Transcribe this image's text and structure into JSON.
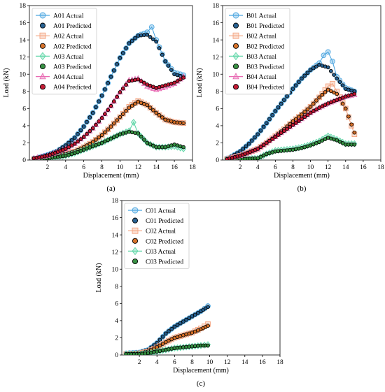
{
  "figure": {
    "colors": {
      "actual_1": "#4da6e0",
      "predicted_1": "#1f5a8c",
      "actual_2": "#f4a582",
      "predicted_2": "#d46a20",
      "actual_3": "#5ed6a7",
      "predicted_3": "#2e8b3a",
      "actual_4": "#e86ab3",
      "predicted_4": "#c0102a"
    }
  },
  "chart_data": [
    {
      "type": "scatter",
      "panel_label": "(a)",
      "xlabel": "Displacement (mm)",
      "ylabel": "Load (kN)",
      "xlim": [
        0,
        18
      ],
      "ylim": [
        0,
        18
      ],
      "xticks": [
        2,
        4,
        6,
        8,
        10,
        12,
        14,
        16,
        18
      ],
      "yticks": [
        0,
        2,
        4,
        6,
        8,
        10,
        12,
        14,
        16,
        18
      ],
      "grid": false,
      "legend_position": "top-left",
      "series": [
        {
          "name": "A01 Actual",
          "kind": "actual",
          "marker": "circle",
          "color_key": "actual_1",
          "x": [
            0.5,
            1,
            2,
            3,
            4,
            5,
            6,
            7,
            8,
            9,
            10,
            11,
            12,
            13,
            13.5,
            14,
            15,
            16,
            17
          ],
          "y": [
            0.2,
            0.3,
            0.6,
            1.0,
            1.7,
            2.6,
            3.9,
            5.5,
            7.5,
            9.7,
            11.9,
            13.6,
            14.5,
            14.9,
            15.5,
            14,
            11.5,
            10.2,
            9.9
          ]
        },
        {
          "name": "A01 Predicted",
          "kind": "predicted",
          "marker": "circle",
          "color_key": "predicted_1",
          "x": [
            0.5,
            1,
            2,
            3,
            4,
            5,
            6,
            7,
            8,
            9,
            10,
            11,
            12,
            13,
            14,
            15,
            16,
            17
          ],
          "y": [
            0.2,
            0.3,
            0.6,
            1.0,
            1.7,
            2.6,
            3.9,
            5.5,
            7.5,
            9.7,
            11.9,
            13.6,
            14.5,
            14.6,
            13.8,
            11.5,
            10,
            9.7
          ]
        },
        {
          "name": "A02 Actual",
          "kind": "actual",
          "marker": "square",
          "color_key": "actual_2",
          "x": [
            0.5,
            2,
            4,
            5,
            6,
            7,
            8,
            9,
            10,
            11,
            12,
            13,
            14,
            15,
            16,
            17
          ],
          "y": [
            0.1,
            0.3,
            0.7,
            1.0,
            1.5,
            2.1,
            2.9,
            3.9,
            5.0,
            6.2,
            6.9,
            6.4,
            5.5,
            4.7,
            4.4,
            4.3
          ]
        },
        {
          "name": "A02 Predicted",
          "kind": "predicted",
          "marker": "circle",
          "color_key": "predicted_2",
          "x": [
            0.5,
            2,
            4,
            5,
            6,
            7,
            8,
            9,
            10,
            11,
            12,
            13,
            14,
            15,
            16,
            17
          ],
          "y": [
            0.1,
            0.3,
            0.7,
            1.0,
            1.5,
            2.1,
            2.9,
            3.9,
            5.0,
            6.1,
            6.8,
            6.4,
            5.5,
            4.7,
            4.4,
            4.3
          ]
        },
        {
          "name": "A03 Actual",
          "kind": "actual",
          "marker": "diamond",
          "color_key": "actual_3",
          "x": [
            0.5,
            2,
            4,
            5,
            6,
            7,
            8,
            9,
            10,
            11,
            11.5,
            12,
            13,
            14,
            15,
            16,
            17
          ],
          "y": [
            0.1,
            0.2,
            0.5,
            0.8,
            1.2,
            1.6,
            2.0,
            2.5,
            3.0,
            3.4,
            4.4,
            3.1,
            2.0,
            1.5,
            1.5,
            1.6,
            1.3
          ]
        },
        {
          "name": "A03 Predicted",
          "kind": "predicted",
          "marker": "circle",
          "color_key": "predicted_3",
          "x": [
            0.5,
            2,
            4,
            5,
            6,
            7,
            8,
            9,
            10,
            11,
            12,
            13,
            14,
            15,
            16,
            17
          ],
          "y": [
            0.1,
            0.2,
            0.5,
            0.8,
            1.2,
            1.6,
            2.0,
            2.5,
            3.0,
            3.3,
            3.1,
            2.0,
            1.5,
            1.5,
            1.8,
            1.5
          ]
        },
        {
          "name": "A04 Actual",
          "kind": "actual",
          "marker": "triangle",
          "color_key": "actual_4",
          "x": [
            0.5,
            2,
            4,
            5,
            6,
            7,
            8,
            9,
            10,
            11,
            12,
            13,
            14,
            15,
            16,
            17
          ],
          "y": [
            0.2,
            0.5,
            1.3,
            1.9,
            2.7,
            3.7,
            4.9,
            6.3,
            7.9,
            9.3,
            9.5,
            8.6,
            8.2,
            8.5,
            8.9,
            9.7
          ]
        },
        {
          "name": "A04 Predicted",
          "kind": "predicted",
          "marker": "circle",
          "color_key": "predicted_4",
          "x": [
            0.5,
            2,
            4,
            5,
            6,
            7,
            8,
            9,
            10,
            11,
            12,
            13,
            14,
            15,
            16,
            17
          ],
          "y": [
            0.2,
            0.5,
            1.3,
            1.9,
            2.7,
            3.7,
            4.9,
            6.3,
            7.9,
            9.2,
            9.4,
            8.8,
            8.4,
            8.7,
            9.0,
            9.6
          ]
        }
      ]
    },
    {
      "type": "scatter",
      "panel_label": "(b)",
      "xlabel": "Displacement (mm)",
      "ylabel": "Load (kN)",
      "xlim": [
        0,
        18
      ],
      "ylim": [
        0,
        18
      ],
      "xticks": [
        2,
        4,
        6,
        8,
        10,
        12,
        14,
        16,
        18
      ],
      "yticks": [
        0,
        2,
        4,
        6,
        8,
        10,
        12,
        14,
        16,
        18
      ],
      "grid": false,
      "legend_position": "top-left",
      "series": [
        {
          "name": "B01 Actual",
          "kind": "actual",
          "marker": "circle",
          "color_key": "actual_1",
          "x": [
            0.5,
            1,
            2,
            3,
            4,
            5,
            6,
            7,
            8,
            9,
            10,
            11,
            11.5,
            12,
            12.5,
            13,
            14,
            15
          ],
          "y": [
            0.2,
            0.4,
            1.0,
            1.9,
            3.0,
            4.3,
            5.7,
            7.0,
            8.3,
            9.5,
            10.5,
            11.3,
            12.2,
            12.6,
            11.5,
            9.7,
            8.4,
            8.0
          ]
        },
        {
          "name": "B01 Predicted",
          "kind": "predicted",
          "marker": "circle",
          "color_key": "predicted_1",
          "x": [
            0.5,
            1,
            2,
            3,
            4,
            5,
            6,
            7,
            8,
            9,
            10,
            11,
            12,
            13,
            14,
            15
          ],
          "y": [
            0.2,
            0.4,
            1.0,
            1.9,
            3.0,
            4.3,
            5.7,
            7.0,
            8.3,
            9.5,
            10.5,
            11.1,
            10.8,
            9.5,
            8.3,
            8.0
          ]
        },
        {
          "name": "B02 Actual",
          "kind": "actual",
          "marker": "square",
          "color_key": "actual_2",
          "x": [
            0.5,
            2,
            4,
            5,
            6,
            7,
            8,
            9,
            10,
            11,
            12,
            12.5,
            13,
            14,
            15
          ],
          "y": [
            0.1,
            0.5,
            1.3,
            2.0,
            2.8,
            3.6,
            4.5,
            5.3,
            6.2,
            7.3,
            8.6,
            8.9,
            8.0,
            6.0,
            3.0
          ]
        },
        {
          "name": "B02 Predicted",
          "kind": "predicted",
          "marker": "circle",
          "color_key": "predicted_2",
          "x": [
            0.5,
            2,
            4,
            5,
            6,
            7,
            8,
            9,
            10,
            11,
            12,
            13,
            14,
            15
          ],
          "y": [
            0.1,
            0.5,
            1.3,
            2.0,
            2.8,
            3.6,
            4.5,
            5.3,
            6.2,
            7.3,
            8.2,
            7.7,
            6.0,
            3.2
          ]
        },
        {
          "name": "B03 Actual",
          "kind": "actual",
          "marker": "diamond",
          "color_key": "actual_3",
          "x": [
            0.5,
            2,
            4,
            5,
            6,
            7,
            8,
            9,
            10,
            11,
            12,
            13,
            14,
            15
          ],
          "y": [
            0.1,
            0.1,
            0.2,
            0.7,
            1.1,
            1.2,
            1.3,
            1.5,
            1.8,
            2.2,
            2.8,
            2.4,
            1.9,
            1.9
          ]
        },
        {
          "name": "B03 Predicted",
          "kind": "predicted",
          "marker": "circle",
          "color_key": "predicted_3",
          "x": [
            0.5,
            2,
            4,
            5,
            6,
            7,
            8,
            9,
            10,
            11,
            12,
            13,
            14,
            15
          ],
          "y": [
            0.1,
            0.1,
            0.2,
            0.7,
            1.0,
            1.1,
            1.2,
            1.4,
            1.7,
            2.1,
            2.6,
            2.3,
            1.8,
            1.8
          ]
        },
        {
          "name": "B04 Actual",
          "kind": "actual",
          "marker": "triangle",
          "color_key": "actual_4",
          "x": [
            0.5,
            2,
            4,
            5,
            6,
            7,
            8,
            9,
            10,
            11,
            12,
            13,
            14,
            15
          ],
          "y": [
            0.1,
            0.5,
            1.3,
            2.0,
            2.7,
            3.4,
            4.1,
            4.8,
            5.5,
            6.1,
            6.6,
            7.0,
            7.4,
            7.6
          ]
        },
        {
          "name": "B04 Predicted",
          "kind": "predicted",
          "marker": "circle",
          "color_key": "predicted_4",
          "x": [
            0.5,
            2,
            4,
            5,
            6,
            7,
            8,
            9,
            10,
            11,
            12,
            13,
            14,
            15
          ],
          "y": [
            0.1,
            0.5,
            1.3,
            2.0,
            2.7,
            3.4,
            4.1,
            4.8,
            5.5,
            6.1,
            6.6,
            7.0,
            7.4,
            7.7
          ]
        }
      ]
    },
    {
      "type": "scatter",
      "panel_label": "(c)",
      "xlabel": "Displacement (mm)",
      "ylabel": "Load (kN)",
      "xlim": [
        0,
        18
      ],
      "ylim": [
        0,
        18
      ],
      "xticks": [
        2,
        4,
        6,
        8,
        10,
        12,
        14,
        16,
        18
      ],
      "yticks": [
        0,
        2,
        4,
        6,
        8,
        10,
        12,
        14,
        16,
        18
      ],
      "grid": false,
      "legend_position": "top-left",
      "series": [
        {
          "name": "C01 Actual",
          "kind": "actual",
          "marker": "circle",
          "color_key": "actual_1",
          "x": [
            0.5,
            2,
            3,
            4,
            5,
            6,
            7,
            8,
            9,
            9.8
          ],
          "y": [
            0.2,
            0.3,
            0.6,
            1.4,
            2.5,
            3.3,
            3.9,
            4.5,
            5.1,
            5.7
          ]
        },
        {
          "name": "C01 Predicted",
          "kind": "predicted",
          "marker": "circle",
          "color_key": "predicted_1",
          "x": [
            0.5,
            2,
            3,
            4,
            5,
            6,
            7,
            8,
            9,
            9.8
          ],
          "y": [
            0.2,
            0.3,
            0.6,
            1.4,
            2.5,
            3.3,
            3.9,
            4.5,
            5.1,
            5.6
          ]
        },
        {
          "name": "C02 Actual",
          "kind": "actual",
          "marker": "square",
          "color_key": "actual_2",
          "x": [
            0.5,
            2,
            3,
            4,
            5,
            6,
            7,
            8,
            9,
            9.8
          ],
          "y": [
            0.1,
            0.2,
            0.4,
            0.9,
            1.5,
            2.0,
            2.3,
            2.6,
            3.1,
            3.6
          ]
        },
        {
          "name": "C02 Predicted",
          "kind": "predicted",
          "marker": "circle",
          "color_key": "predicted_2",
          "x": [
            0.5,
            2,
            3,
            4,
            5,
            6,
            7,
            8,
            9,
            9.8
          ],
          "y": [
            0.1,
            0.2,
            0.4,
            0.9,
            1.5,
            2.0,
            2.3,
            2.6,
            3.0,
            3.4
          ]
        },
        {
          "name": "C03 Actual",
          "kind": "actual",
          "marker": "diamond",
          "color_key": "actual_3",
          "x": [
            0.5,
            2,
            3,
            4,
            5,
            6,
            7,
            8,
            9,
            9.8
          ],
          "y": [
            0.1,
            0.1,
            0.2,
            0.4,
            0.6,
            0.8,
            0.9,
            1.0,
            1.1,
            1.2
          ]
        },
        {
          "name": "C03 Predicted",
          "kind": "predicted",
          "marker": "circle",
          "color_key": "predicted_3",
          "x": [
            0.5,
            2,
            3,
            4,
            5,
            6,
            7,
            8,
            9,
            9.8
          ],
          "y": [
            0.1,
            0.1,
            0.2,
            0.4,
            0.6,
            0.8,
            0.9,
            1.0,
            1.1,
            1.1
          ]
        }
      ]
    }
  ]
}
